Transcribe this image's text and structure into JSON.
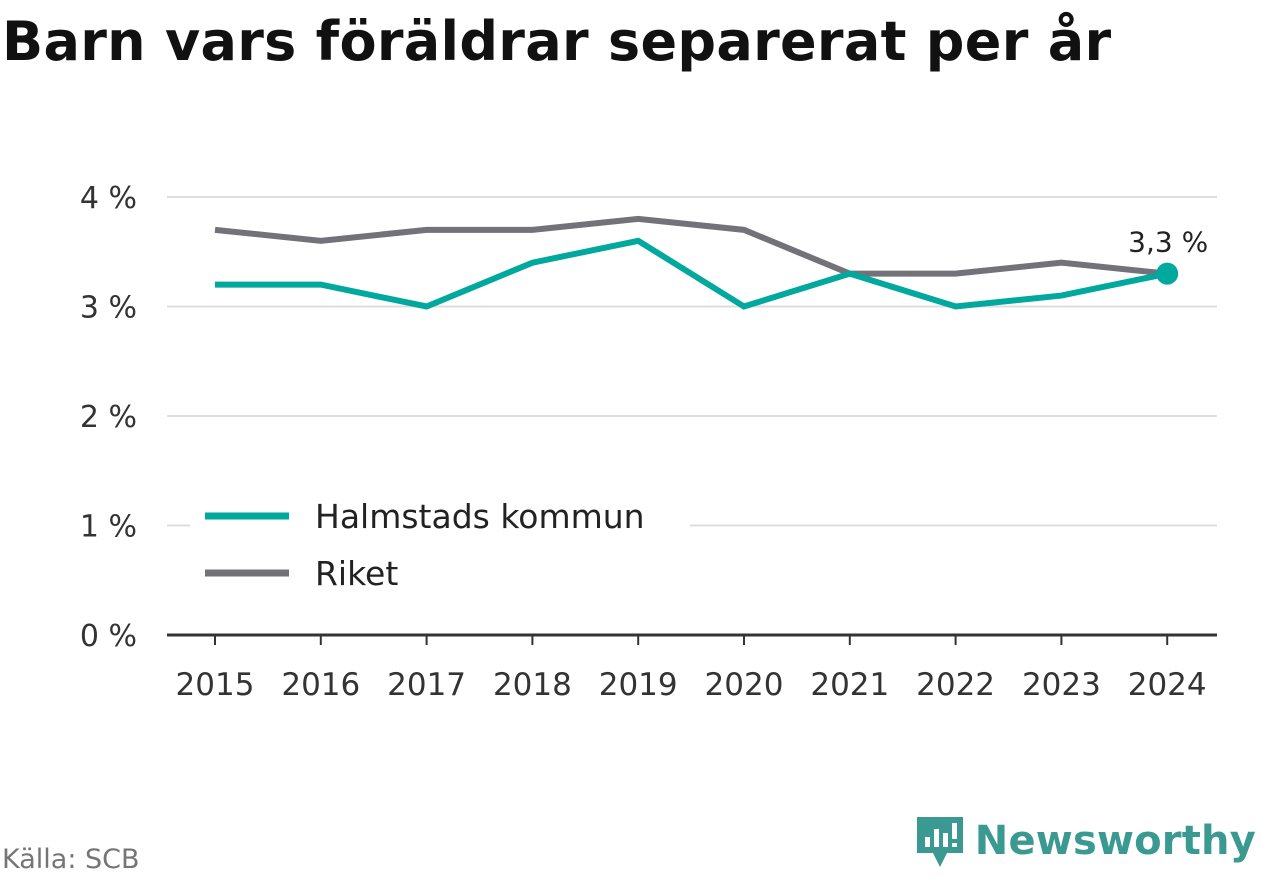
{
  "title": "Barn vars föräldrar separerat per år",
  "source": "Källa: SCB",
  "brand": {
    "name": "Newsworthy",
    "icon": "newsworthy-logo-icon"
  },
  "colors": {
    "halmstad": "#00a89d",
    "riket": "#737278",
    "grid": "#dddddd",
    "axis": "#333333"
  },
  "chart_data": {
    "type": "line",
    "title": "Barn vars föräldrar separerat per år",
    "x": [
      "2015",
      "2016",
      "2017",
      "2018",
      "2019",
      "2020",
      "2021",
      "2022",
      "2023",
      "2024"
    ],
    "series": [
      {
        "name": "Halmstads kommun",
        "values": [
          3.2,
          3.2,
          3.0,
          3.4,
          3.6,
          3.0,
          3.3,
          3.0,
          3.1,
          3.3
        ]
      },
      {
        "name": "Riket",
        "values": [
          3.7,
          3.6,
          3.7,
          3.7,
          3.8,
          3.7,
          3.3,
          3.3,
          3.4,
          3.3
        ]
      }
    ],
    "yticks": [
      "0 %",
      "1 %",
      "2 %",
      "3 %",
      "4 %"
    ],
    "ylim": [
      0,
      4
    ],
    "annotation": {
      "text": "3,3 %",
      "series": "Halmstads kommun",
      "x": "2024"
    },
    "legend": "bottom-left",
    "grid": true
  }
}
